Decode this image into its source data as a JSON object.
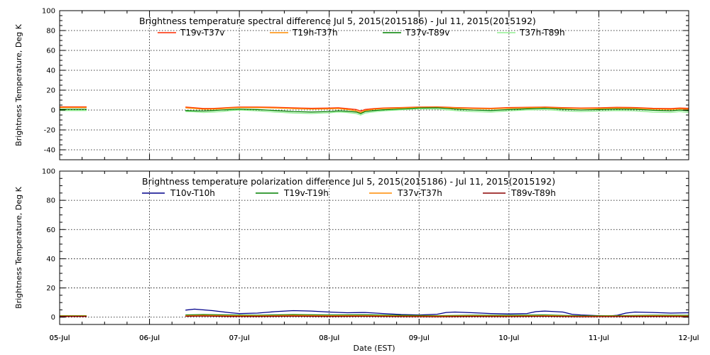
{
  "chart_data": [
    {
      "type": "line",
      "title": "Brightness temperature spectral difference     Jul  5, 2015(2015186) - Jul 11, 2015(2015192)",
      "ylabel": "Brightness Temperature, Deg K",
      "xlabel": "",
      "ylim": [
        -50,
        100
      ],
      "yticks": [
        -40,
        -20,
        0,
        20,
        40,
        60,
        80,
        100
      ],
      "xlim": [
        0,
        7
      ],
      "xticks": [
        "05-Jul",
        "06-Jul",
        "07-Jul",
        "08-Jul",
        "09-Jul",
        "10-Jul",
        "11-Jul",
        "12-Jul"
      ],
      "grid": true,
      "legend_position": "top",
      "series": [
        {
          "name": "T19v-T37v",
          "color": "#ff2a00",
          "x": [
            0,
            0.3,
            0.35,
            1.35,
            1.4,
            1.5,
            1.6,
            1.7,
            1.8,
            1.9,
            2.0,
            2.2,
            2.4,
            2.6,
            2.8,
            3.0,
            3.1,
            3.2,
            3.3,
            3.35,
            3.4,
            3.5,
            3.6,
            3.8,
            4.0,
            4.2,
            4.4,
            4.6,
            4.8,
            5.0,
            5.2,
            5.4,
            5.6,
            5.8,
            6.0,
            6.2,
            6.4,
            6.6,
            6.8,
            6.9,
            7.0
          ],
          "y": [
            3.2,
            3.2,
            null,
            null,
            3.0,
            2.3,
            1.6,
            1.6,
            2.0,
            2.6,
            3.0,
            3.0,
            2.8,
            2.2,
            1.8,
            2.0,
            2.3,
            1.5,
            0.5,
            -1.0,
            0.6,
            1.5,
            2.0,
            2.5,
            3.0,
            3.2,
            2.5,
            2.0,
            1.8,
            2.5,
            2.8,
            3.0,
            2.4,
            2.0,
            2.2,
            2.7,
            2.5,
            1.8,
            1.5,
            2.0,
            1.8
          ]
        },
        {
          "name": "T19h-T37h",
          "color": "#ff8c00",
          "x": [
            0,
            0.3,
            0.35,
            1.35,
            1.4,
            1.5,
            1.6,
            1.7,
            1.8,
            1.9,
            2.0,
            2.2,
            2.4,
            2.6,
            2.8,
            3.0,
            3.1,
            3.2,
            3.3,
            3.35,
            3.4,
            3.5,
            3.6,
            3.8,
            4.0,
            4.2,
            4.4,
            4.6,
            4.8,
            5.0,
            5.2,
            5.4,
            5.6,
            5.8,
            6.0,
            6.2,
            6.4,
            6.6,
            6.8,
            6.9,
            7.0
          ],
          "y": [
            2.5,
            2.5,
            null,
            null,
            2.2,
            1.6,
            0.8,
            0.9,
            1.3,
            2.0,
            2.4,
            2.4,
            2.1,
            1.4,
            1.0,
            1.2,
            1.5,
            0.6,
            -0.8,
            -2.5,
            -0.5,
            0.8,
            1.4,
            2.0,
            2.6,
            2.8,
            2.0,
            1.4,
            1.2,
            1.8,
            2.2,
            2.5,
            1.8,
            1.4,
            1.6,
            2.1,
            1.8,
            1.0,
            0.6,
            1.2,
            0.8
          ]
        },
        {
          "name": "T37v-T89v",
          "color": "#008000",
          "x": [
            0,
            0.3,
            0.35,
            1.35,
            1.4,
            1.5,
            1.6,
            1.7,
            1.8,
            1.9,
            2.0,
            2.2,
            2.4,
            2.6,
            2.8,
            3.0,
            3.1,
            3.2,
            3.3,
            3.35,
            3.4,
            3.5,
            3.6,
            3.8,
            4.0,
            4.2,
            4.4,
            4.6,
            4.8,
            5.0,
            5.2,
            5.4,
            5.6,
            5.8,
            6.0,
            6.2,
            6.4,
            6.6,
            6.8,
            6.9,
            7.0
          ],
          "y": [
            0.8,
            0.8,
            null,
            null,
            -0.5,
            -0.8,
            -1.0,
            -0.5,
            0.0,
            0.5,
            1.0,
            0.5,
            -0.5,
            -1.5,
            -2.0,
            -1.5,
            -0.8,
            -1.2,
            -2.0,
            -3.5,
            -1.5,
            -0.5,
            0.2,
            1.0,
            2.0,
            2.2,
            1.0,
            0.0,
            -0.5,
            0.5,
            1.2,
            1.8,
            0.8,
            0.0,
            0.5,
            1.0,
            0.8,
            -0.2,
            -0.8,
            0.0,
            -0.8
          ]
        },
        {
          "name": "T37h-T89h",
          "color": "#90ee90",
          "x": [
            0,
            0.3,
            0.35,
            1.35,
            1.4,
            1.5,
            1.6,
            1.7,
            1.8,
            1.9,
            2.0,
            2.2,
            2.4,
            2.6,
            2.8,
            3.0,
            3.1,
            3.2,
            3.3,
            3.35,
            3.4,
            3.5,
            3.6,
            3.8,
            4.0,
            4.2,
            4.4,
            4.6,
            4.8,
            5.0,
            5.2,
            5.4,
            5.6,
            5.8,
            6.0,
            6.2,
            6.4,
            6.6,
            6.8,
            6.9,
            7.0
          ],
          "y": [
            -0.5,
            -0.5,
            null,
            null,
            -1.5,
            -1.8,
            -2.5,
            -2.0,
            -1.5,
            -0.5,
            0.0,
            -0.8,
            -2.0,
            -3.0,
            -3.5,
            -2.8,
            -2.0,
            -2.5,
            -3.5,
            -5.0,
            -3.0,
            -1.8,
            -0.8,
            0.2,
            1.2,
            1.0,
            -0.5,
            -1.5,
            -2.0,
            -0.8,
            0.0,
            0.5,
            -0.8,
            -1.5,
            -1.0,
            -0.5,
            -0.8,
            -2.0,
            -2.5,
            -1.5,
            -2.5
          ]
        }
      ]
    },
    {
      "type": "line",
      "title": "Brightness temperature polarization difference     Jul  5, 2015(2015186) - Jul 11, 2015(2015192)",
      "ylabel": "Brightness Temperature, Deg K",
      "xlabel": "Date (EST)",
      "ylim": [
        -5,
        100
      ],
      "yticks": [
        0,
        20,
        40,
        60,
        80,
        100
      ],
      "xlim": [
        0,
        7
      ],
      "xticks": [
        "05-Jul",
        "06-Jul",
        "07-Jul",
        "08-Jul",
        "09-Jul",
        "10-Jul",
        "11-Jul",
        "12-Jul"
      ],
      "grid": true,
      "legend_position": "top",
      "series": [
        {
          "name": "T10v-T10h",
          "color": "#00008b",
          "x": [
            0,
            0.3,
            0.35,
            1.35,
            1.4,
            1.5,
            1.7,
            1.9,
            2.0,
            2.2,
            2.4,
            2.6,
            2.8,
            3.0,
            3.2,
            3.4,
            3.6,
            3.8,
            4.0,
            4.2,
            4.3,
            4.4,
            4.6,
            4.8,
            5.0,
            5.2,
            5.3,
            5.4,
            5.6,
            5.7,
            5.8,
            6.0,
            6.1,
            6.2,
            6.3,
            6.4,
            6.6,
            6.8,
            7.0
          ],
          "y": [
            1.0,
            1.0,
            null,
            null,
            4.8,
            5.5,
            4.5,
            3.0,
            2.5,
            2.8,
            3.8,
            4.5,
            4.2,
            3.5,
            3.0,
            3.2,
            2.5,
            1.8,
            1.5,
            2.0,
            3.2,
            3.5,
            3.0,
            2.5,
            2.2,
            2.5,
            3.8,
            4.2,
            3.5,
            2.0,
            1.5,
            1.0,
            0.8,
            1.2,
            2.8,
            3.5,
            3.2,
            2.8,
            3.0
          ]
        },
        {
          "name": "T19v-T19h",
          "color": "#008000",
          "x": [
            0,
            0.3,
            0.35,
            1.35,
            1.4,
            1.6,
            1.9,
            2.2,
            2.6,
            3.0,
            3.4,
            3.8,
            4.2,
            4.6,
            5.0,
            5.4,
            5.8,
            6.2,
            6.6,
            7.0
          ],
          "y": [
            1.0,
            1.0,
            null,
            null,
            1.5,
            1.8,
            1.5,
            1.3,
            1.8,
            1.5,
            1.6,
            1.2,
            1.0,
            1.3,
            1.2,
            1.5,
            0.9,
            1.0,
            1.3,
            1.2
          ]
        },
        {
          "name": "T37v-T37h",
          "color": "#ff8c00",
          "x": [
            0,
            0.3,
            0.35,
            1.35,
            1.4,
            1.6,
            1.9,
            2.2,
            2.6,
            3.0,
            3.4,
            3.8,
            4.2,
            4.6,
            5.0,
            5.4,
            5.8,
            6.2,
            6.6,
            7.0
          ],
          "y": [
            0.8,
            0.8,
            null,
            null,
            1.0,
            1.2,
            1.0,
            0.9,
            1.2,
            1.0,
            1.1,
            0.8,
            0.7,
            0.9,
            0.8,
            1.0,
            0.6,
            0.7,
            0.9,
            0.8
          ]
        },
        {
          "name": "T89v-T89h",
          "color": "#8b0000",
          "x": [
            0,
            0.3,
            0.35,
            1.35,
            1.4,
            1.6,
            1.9,
            2.2,
            2.6,
            3.0,
            3.4,
            3.8,
            4.2,
            4.6,
            5.0,
            5.4,
            5.8,
            6.2,
            6.6,
            7.0
          ],
          "y": [
            0.5,
            0.5,
            null,
            null,
            0.6,
            0.8,
            0.5,
            0.5,
            0.7,
            0.5,
            0.6,
            0.4,
            0.3,
            0.5,
            0.4,
            0.6,
            0.3,
            0.4,
            0.5,
            0.4
          ]
        }
      ]
    }
  ]
}
